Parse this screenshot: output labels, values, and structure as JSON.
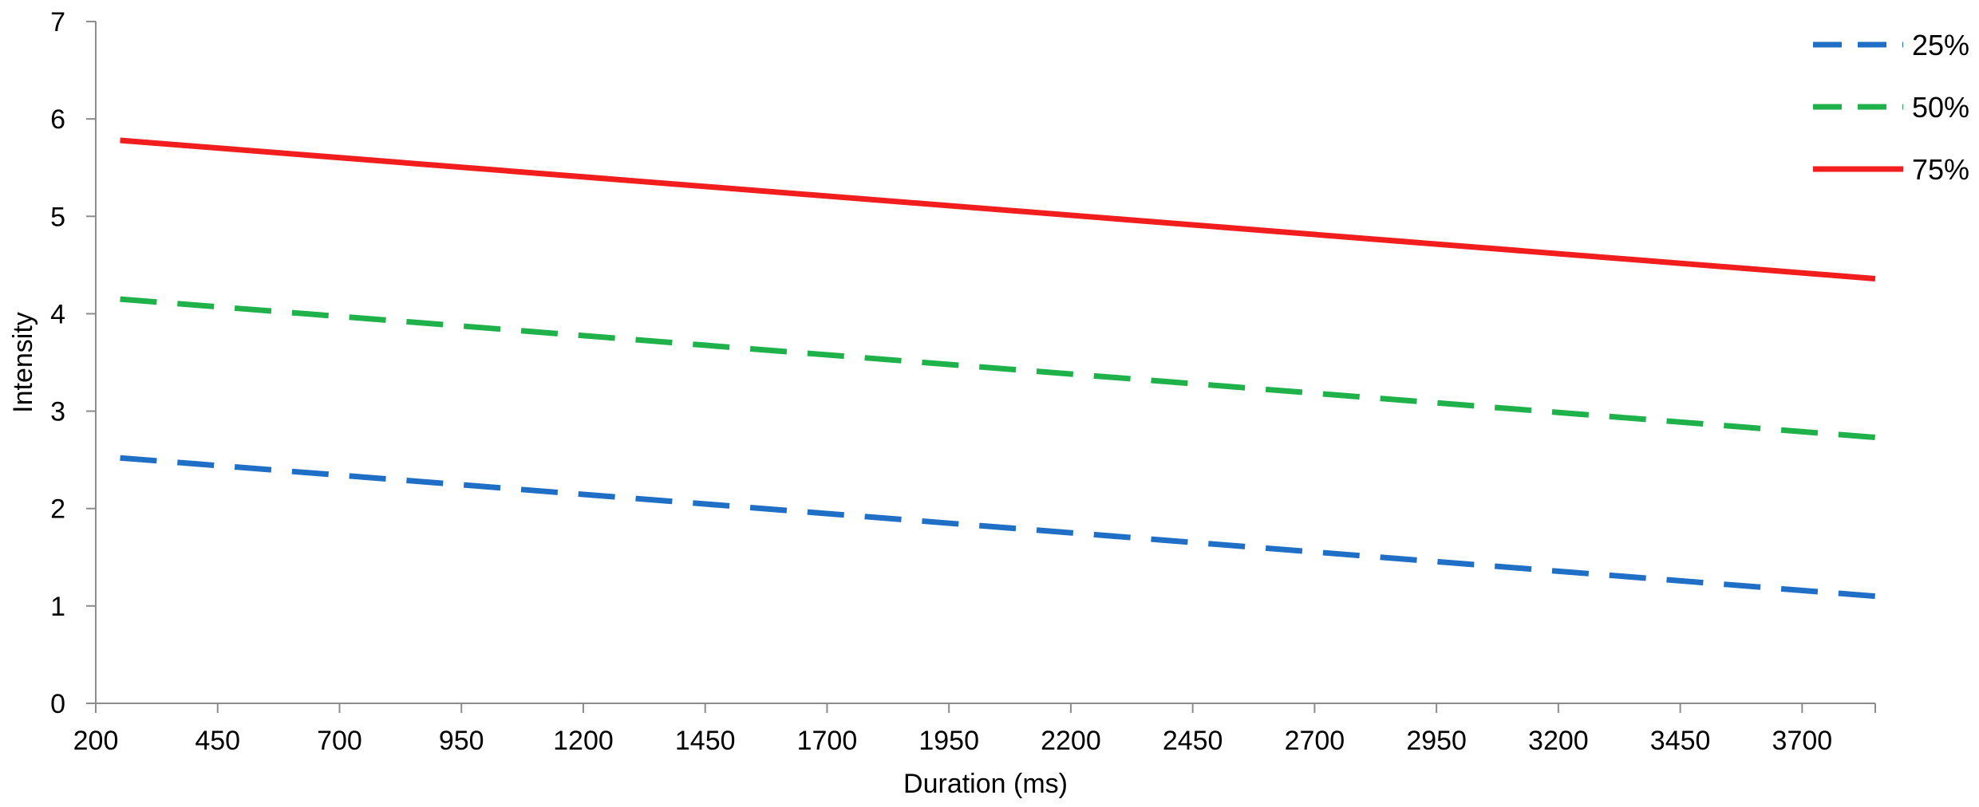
{
  "chart_data": {
    "type": "line",
    "title": "",
    "xlabel": "Duration (ms)",
    "ylabel": "Intensity",
    "xlim": [
      200,
      3850
    ],
    "ylim": [
      0,
      7
    ],
    "x_ticks": [
      200,
      450,
      700,
      950,
      1200,
      1450,
      1700,
      1950,
      2200,
      2450,
      2700,
      2950,
      3200,
      3450,
      3700
    ],
    "x_tick_labels": [
      "200",
      "450",
      "700",
      "950",
      "1200",
      "1450",
      "1700",
      "1950",
      "2200",
      "2450",
      "2700",
      "2950",
      "3200",
      "3450",
      "3700"
    ],
    "y_ticks": [
      0,
      1,
      2,
      3,
      4,
      5,
      6,
      7
    ],
    "y_tick_labels": [
      "0",
      "1",
      "2",
      "3",
      "4",
      "5",
      "6",
      "7"
    ],
    "grid": false,
    "legend_position": "top-right",
    "series": [
      {
        "name": "25%",
        "color": "#1f6fc6",
        "style": "dashed",
        "x": [
          250,
          3850
        ],
        "y": [
          2.52,
          1.1
        ]
      },
      {
        "name": "50%",
        "color": "#1fb14a",
        "style": "dashed",
        "x": [
          250,
          3850
        ],
        "y": [
          4.15,
          2.73
        ]
      },
      {
        "name": "75%",
        "color": "#f21d1d",
        "style": "solid",
        "x": [
          250,
          3850
        ],
        "y": [
          5.78,
          4.36
        ]
      }
    ]
  }
}
